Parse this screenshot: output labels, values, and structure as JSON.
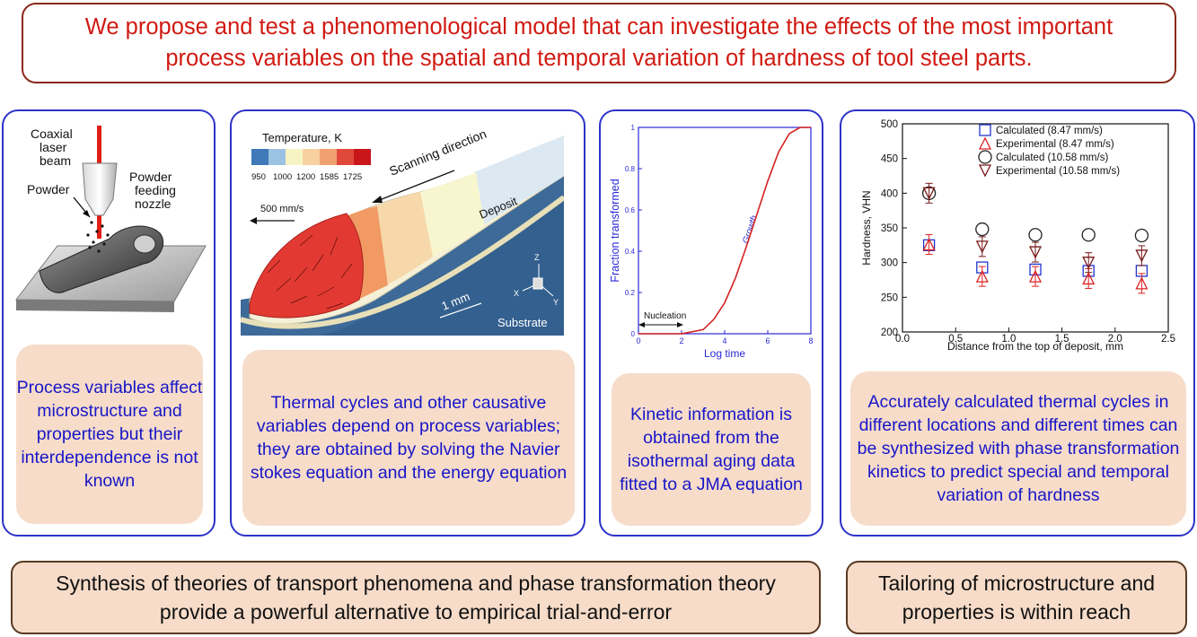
{
  "headline": {
    "line1": "We propose and test a phenomenological model that can investigate the effects of the most important",
    "line2": "process variables on the spatial and temporal variation of hardness of tool steel parts."
  },
  "panel1": {
    "labels": {
      "coaxial": "Coaxial",
      "laser": "laser",
      "beam": "beam",
      "powder": "Powder",
      "powder2": "Powder",
      "feeding": "feeding",
      "nozzle": "nozzle"
    },
    "caption": "Process variables affect microstructure and properties but their interdependence is not known"
  },
  "panel2": {
    "temperature_label": "Temperature, K",
    "colorbar_ticks": [
      "950",
      "1000",
      "1200",
      "1585",
      "1725"
    ],
    "colorbar_colors": [
      "#3f79b8",
      "#9cc2e3",
      "#f6f4c4",
      "#f7d2a0",
      "#f1a070",
      "#e0483b",
      "#c8161b"
    ],
    "velocity_label": "500 mm/s",
    "scanning_label": "Scanning direction",
    "deposit_label": "Deposit",
    "scale_label": "1 mm",
    "substrate_label": "Substrate",
    "axes": {
      "z": "Z",
      "x": "X",
      "y": "Y"
    },
    "caption": "Thermal cycles and other causative variables depend on process variables; they are obtained by solving the Navier stokes equation and the energy equation"
  },
  "panel3": {
    "chart_data": {
      "type": "line",
      "x": [
        0,
        1,
        2,
        3,
        3.5,
        4,
        4.5,
        5,
        5.5,
        6,
        6.5,
        7,
        7.5,
        8
      ],
      "values": [
        0,
        0,
        0,
        0.02,
        0.07,
        0.15,
        0.27,
        0.42,
        0.58,
        0.74,
        0.88,
        0.97,
        1.0,
        1.0
      ],
      "xlabel": "Log time",
      "ylabel": "Fraction transformed",
      "xlim": [
        0,
        8
      ],
      "ylim": [
        0,
        1
      ],
      "xticks": [
        "0",
        "2",
        "4",
        "6",
        "8"
      ],
      "yticks": [
        "0",
        "0.2",
        "0.4",
        "0.6",
        "0.8",
        "1"
      ],
      "annotations": [
        "Nucleation",
        "Growth"
      ],
      "color": "#d42222",
      "axis_color": "#2a2ad6"
    },
    "caption": "Kinetic information is obtained from the isothermal aging data fitted to a JMA equation"
  },
  "panel4": {
    "chart_data": {
      "type": "scatter",
      "xlabel": "Distance from the top of deposit, mm",
      "ylabel": "Hardness, VHN",
      "xlim": [
        0,
        2.5
      ],
      "ylim": [
        200,
        500
      ],
      "xticks": [
        "0.0",
        "0.5",
        "1.0",
        "1.5",
        "2.0",
        "2.5"
      ],
      "yticks": [
        "200",
        "250",
        "300",
        "350",
        "400",
        "450",
        "500"
      ],
      "legend_position": "top-right",
      "series": [
        {
          "name": "Calculated (8.47 mm/s)",
          "marker": "square",
          "color": "#2233cc",
          "x": [
            0.25,
            0.75,
            1.25,
            1.75,
            2.25
          ],
          "y": [
            325,
            293,
            290,
            288,
            288
          ]
        },
        {
          "name": "Experimental (8.47 mm/s)",
          "marker": "triangle-up",
          "color": "#dd2222",
          "x": [
            0.25,
            0.75,
            1.25,
            1.75,
            2.25
          ],
          "y": [
            326,
            280,
            280,
            277,
            270
          ]
        },
        {
          "name": "Calculated (10.58 mm/s)",
          "marker": "circle",
          "color": "#222222",
          "x": [
            0.25,
            0.75,
            1.25,
            1.75,
            2.25
          ],
          "y": [
            400,
            348,
            340,
            340,
            339
          ]
        },
        {
          "name": "Experimental (10.58 mm/s)",
          "marker": "triangle-down",
          "color": "#7a1a1a",
          "x": [
            0.25,
            0.75,
            1.25,
            1.75,
            2.25
          ],
          "y": [
            400,
            323,
            315,
            300,
            310
          ]
        }
      ]
    },
    "caption": "Accurately calculated thermal cycles in different locations and different times can be synthesized with phase transformation kinetics to predict special and temporal variation of hardness"
  },
  "bottom": {
    "left": "Synthesis of theories of transport phenomena and phase transformation theory provide a powerful alternative to empirical trial-and-error",
    "right": "Tailoring of microstructure and properties is within reach"
  }
}
